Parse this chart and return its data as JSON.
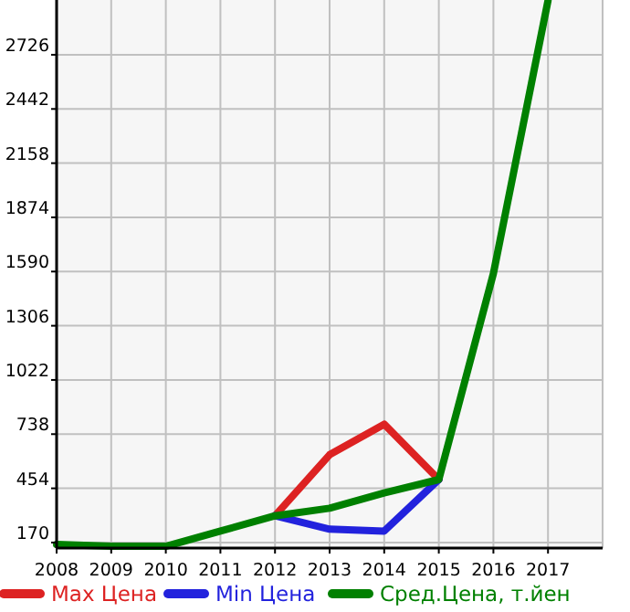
{
  "chart_data": {
    "type": "line",
    "x": [
      2008,
      2009,
      2010,
      2011,
      2012,
      2013,
      2014,
      2015,
      2016,
      2017
    ],
    "series": [
      {
        "name": "Max Цена",
        "color": "#dd2222",
        "values": [
          null,
          null,
          null,
          null,
          310,
          630,
          790,
          500,
          null,
          null
        ]
      },
      {
        "name": "Min Цена",
        "color": "#2222dd",
        "values": [
          null,
          null,
          null,
          null,
          310,
          240,
          230,
          500,
          null,
          null
        ]
      },
      {
        "name": "Сред.Цена, т.йен",
        "color": "#008000",
        "values": [
          160,
          150,
          150,
          230,
          310,
          350,
          430,
          500,
          1580,
          3010
        ]
      }
    ],
    "xlim": [
      2008,
      2018
    ],
    "xticks": [
      2008,
      2009,
      2010,
      2011,
      2012,
      2013,
      2014,
      2015,
      2016,
      2017
    ],
    "ylim": [
      141,
      3013
    ],
    "yticks": [
      170,
      454,
      738,
      1022,
      1306,
      1590,
      1874,
      2158,
      2442,
      2726
    ],
    "grid": true,
    "legend": "bottom",
    "marker": "none",
    "line_style": "solid"
  }
}
